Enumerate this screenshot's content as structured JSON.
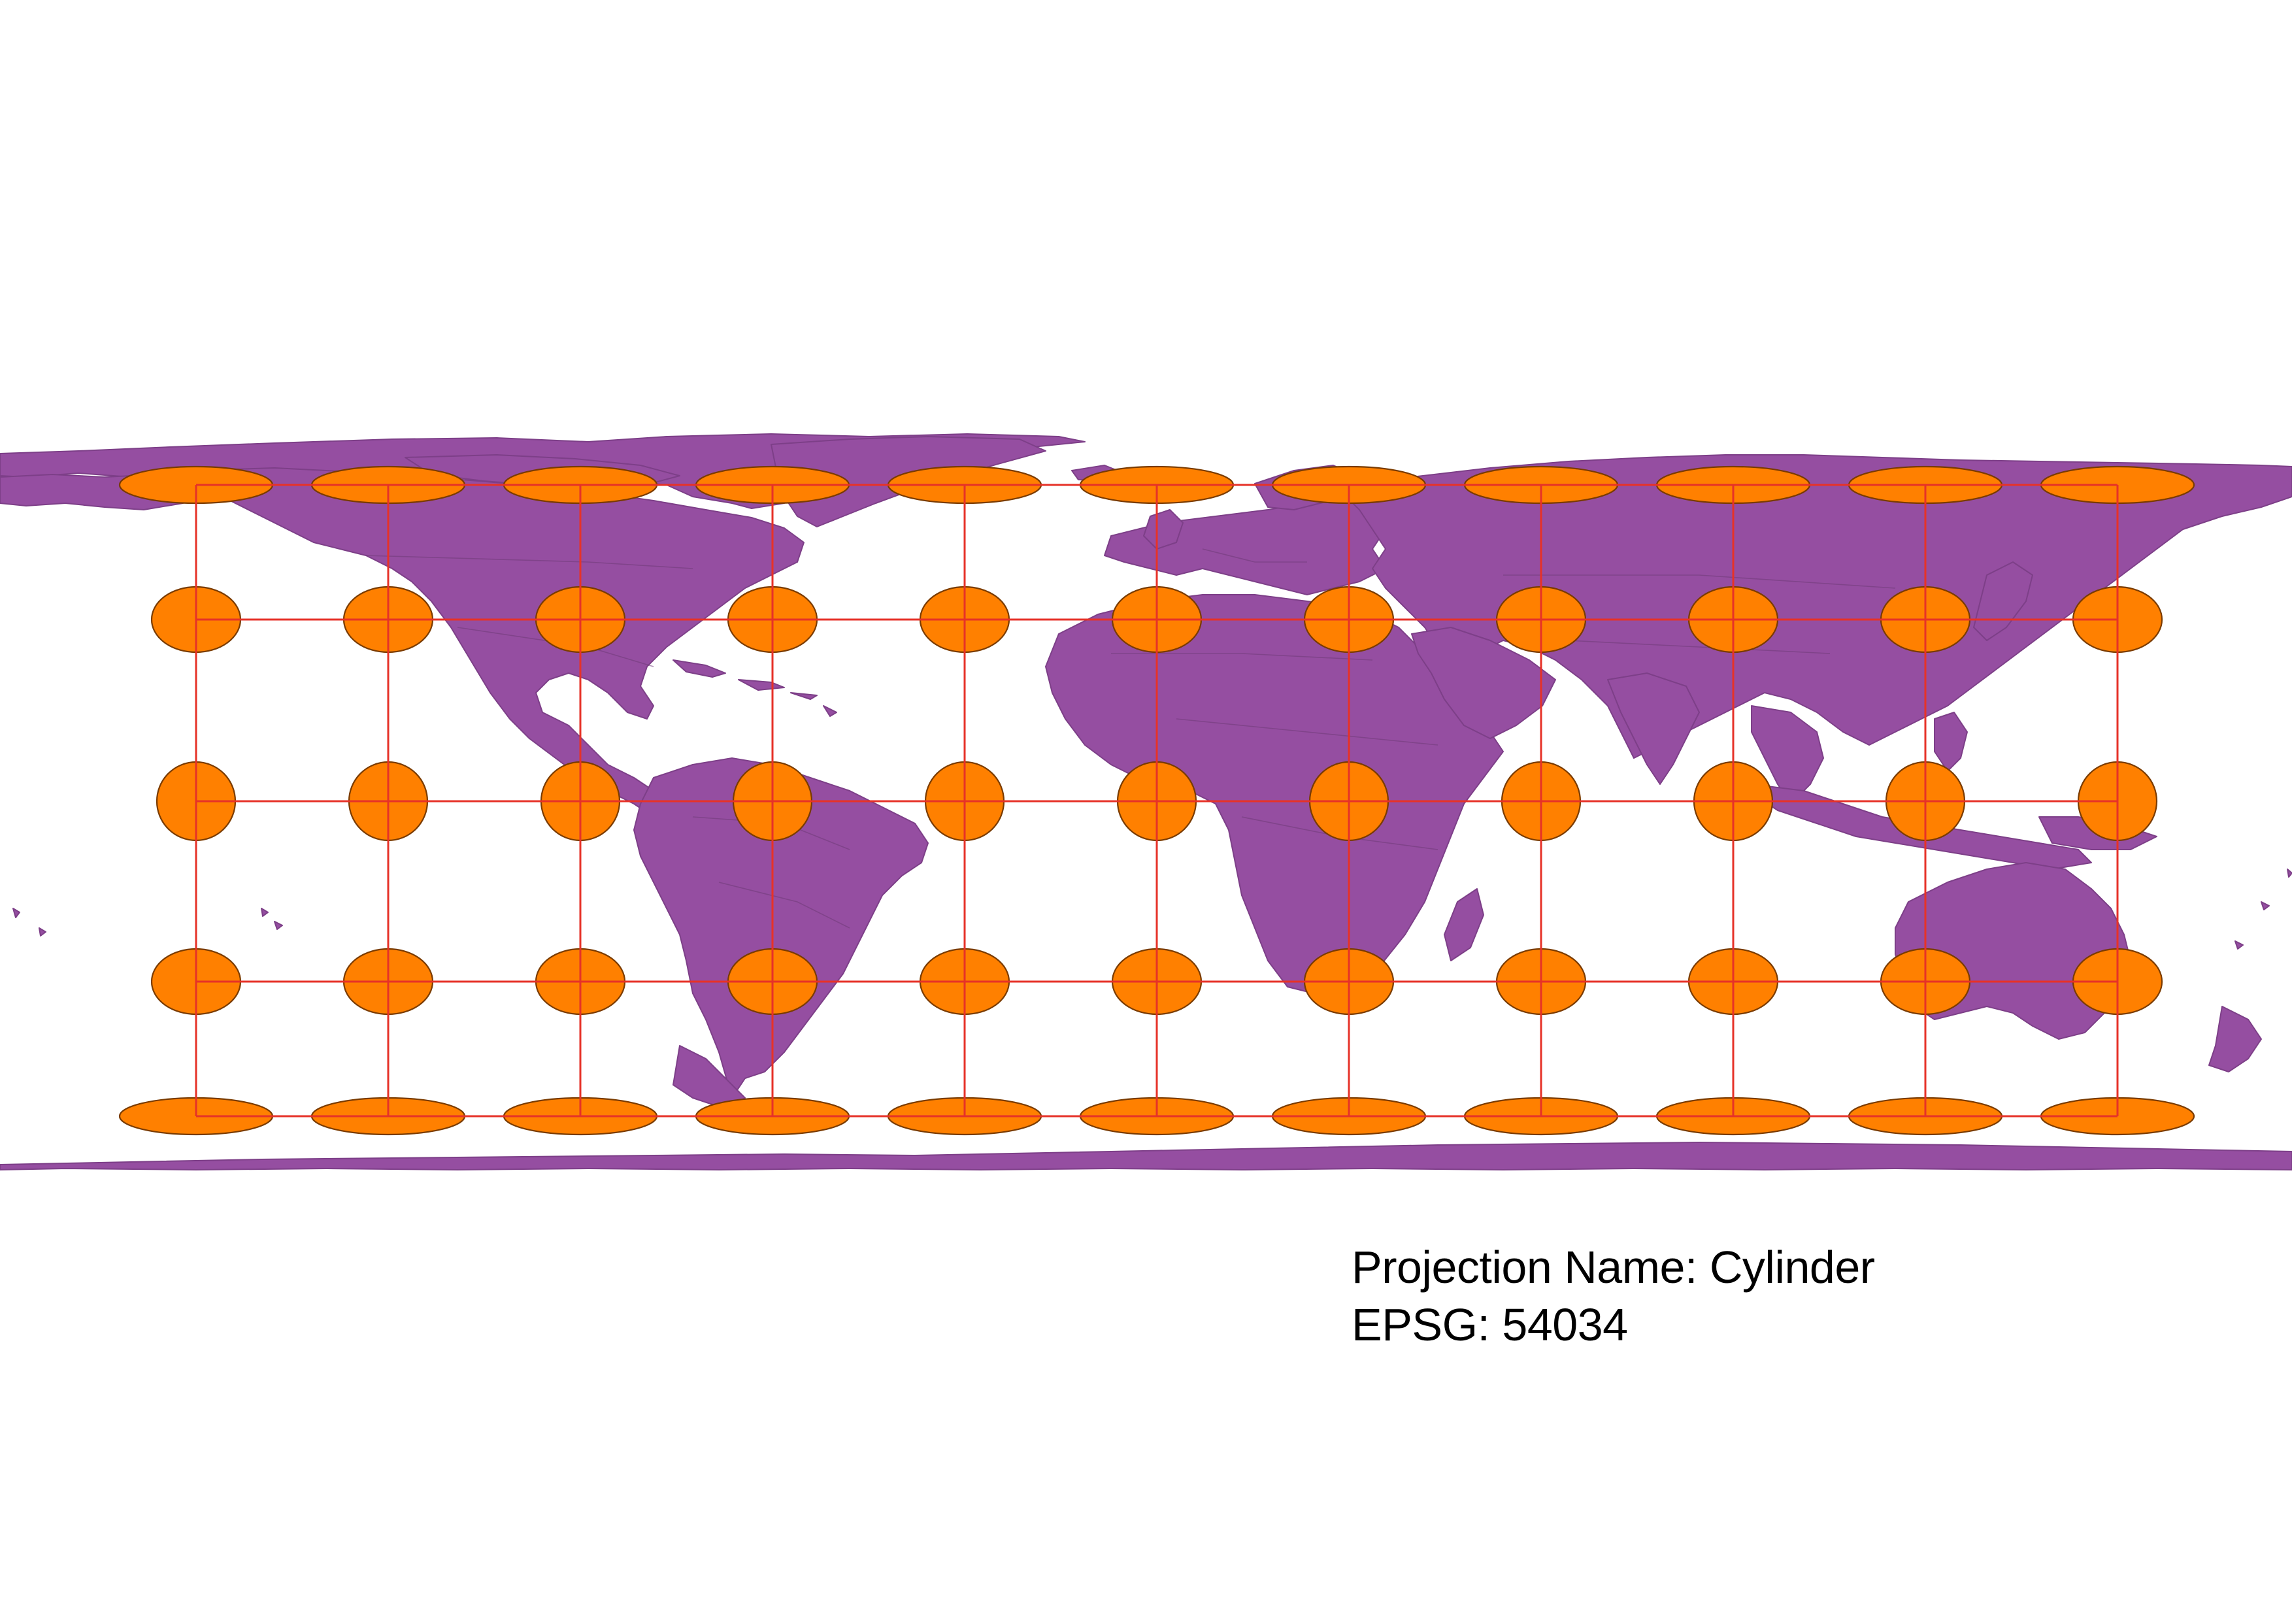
{
  "caption": {
    "projection_name": "Projection Name: Cylinder",
    "epsg": "EPSG: 54034"
  },
  "map": {
    "land_color": "#954ea1",
    "tissot_color": "#ff8000",
    "graticule_color": "#e63228",
    "graticule_longitudes": [
      -150,
      -120,
      -90,
      -60,
      -30,
      0,
      30,
      60,
      90,
      120,
      150
    ],
    "graticule_latitudes": [
      60,
      30,
      0,
      -30,
      -60
    ]
  }
}
